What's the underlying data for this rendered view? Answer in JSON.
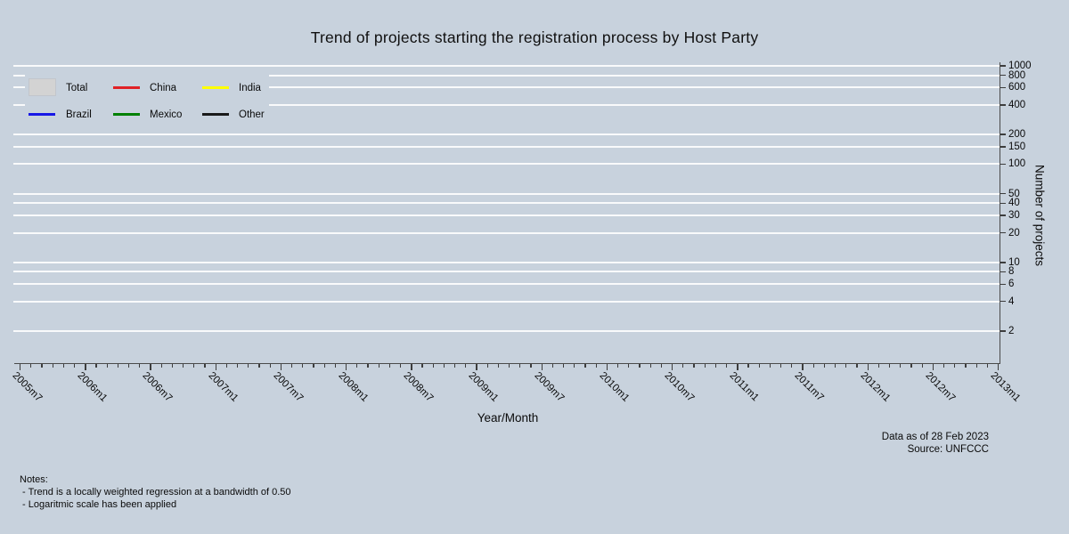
{
  "title": "Trend of projects starting the registration process by Host Party",
  "colors": {
    "background": "#c8d2dd",
    "gridline": "#ffffff",
    "axis": "#4a4a4a",
    "text": "#0a0a0a",
    "total_swatch": "#d3d3d3",
    "china": "#e02126",
    "india": "#ffff00",
    "brazil": "#1717e6",
    "mexico": "#008000",
    "other": "#1a1a1a"
  },
  "legend": {
    "items": [
      {
        "label": "Total",
        "color": "#d3d3d3",
        "swatch": "area",
        "row": 0,
        "col": 0
      },
      {
        "label": "China",
        "color": "#e02126",
        "swatch": "line",
        "row": 0,
        "col": 1
      },
      {
        "label": "India",
        "color": "#ffff00",
        "swatch": "line",
        "row": 0,
        "col": 2
      },
      {
        "label": "Brazil",
        "color": "#1717e6",
        "swatch": "line",
        "row": 1,
        "col": 0
      },
      {
        "label": "Mexico",
        "color": "#008000",
        "swatch": "line",
        "row": 1,
        "col": 1
      },
      {
        "label": "Other",
        "color": "#1a1a1a",
        "swatch": "line",
        "row": 1,
        "col": 2
      }
    ]
  },
  "chart_data": {
    "type": "line",
    "title": "Trend of projects starting the registration process by Host Party",
    "xlabel": "Year/Month",
    "ylabel": "Number of projects",
    "y_scale": "log",
    "y_ticks": [
      1000,
      800,
      600,
      400,
      200,
      150,
      100,
      50,
      40,
      30,
      20,
      10,
      8,
      6,
      4,
      2
    ],
    "ylim_ticks": [
      2,
      1000
    ],
    "x_ticks": [
      "2005m7",
      "2006m1",
      "2006m7",
      "2007m1",
      "2007m7",
      "2008m1",
      "2008m7",
      "2009m1",
      "2009m7",
      "2010m1",
      "2010m7",
      "2011m1",
      "2011m7",
      "2012m1",
      "2012m7",
      "2013m1"
    ],
    "x_minor_ticks_per_interval": 5,
    "grid": "horizontal-only",
    "legend_position": "top-left-inside",
    "legend_entries": [
      "Total",
      "China",
      "India",
      "Brazil",
      "Mexico",
      "Other"
    ],
    "series": []
  },
  "footer": {
    "data_as_of": "Data as of 28 Feb 2023",
    "source": "Source: UNFCCC"
  },
  "notes": {
    "heading": "Notes:",
    "lines": [
      " - Trend is a locally weighted regression at a bandwidth of 0.50",
      " - Logaritmic scale has been applied"
    ]
  }
}
